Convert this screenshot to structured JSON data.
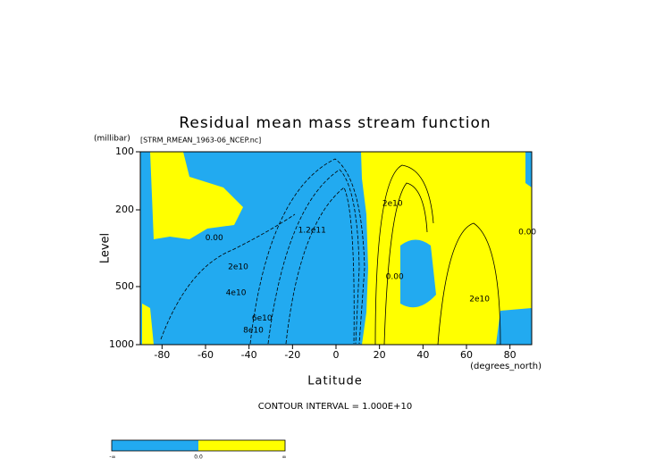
{
  "chart_data": {
    "type": "contour",
    "title": "Residual mean mass stream function",
    "subtitle": "[STRM_RMEAN_1963-06_NCEP.nc]",
    "xlabel": "Latitude",
    "xunit": "(degrees_north)",
    "ylabel": "Level",
    "yunit": "(millibar)",
    "xlim": [
      -90,
      90
    ],
    "ylim": [
      1000,
      100
    ],
    "ylog": true,
    "xticks": [
      -80,
      -60,
      -40,
      -20,
      0,
      20,
      40,
      60,
      80
    ],
    "yticks": [
      100,
      200,
      500,
      1000
    ],
    "contour_interval_label": "CONTOUR INTERVAL = 1.000E+10",
    "contour_labels": [
      {
        "text": "0.00",
        "x": -56,
        "y": 280
      },
      {
        "text": "2e10",
        "x": -45,
        "y": 395
      },
      {
        "text": "4e10",
        "x": -46,
        "y": 540
      },
      {
        "text": "6e10",
        "x": -34,
        "y": 730
      },
      {
        "text": "8e10",
        "x": -38,
        "y": 845
      },
      {
        "text": "1.2e11",
        "x": -11,
        "y": 255
      },
      {
        "text": "2e10",
        "x": 26,
        "y": 186
      },
      {
        "text": "0.00",
        "x": 27,
        "y": 445
      },
      {
        "text": "2e10",
        "x": 66,
        "y": 580
      },
      {
        "text": "0.00",
        "x": 88,
        "y": 261
      }
    ],
    "colorbar": {
      "colors": [
        "#22aaf0",
        "#ffff00"
      ],
      "labels": [
        "-∞",
        "0.0",
        "∞"
      ]
    }
  }
}
